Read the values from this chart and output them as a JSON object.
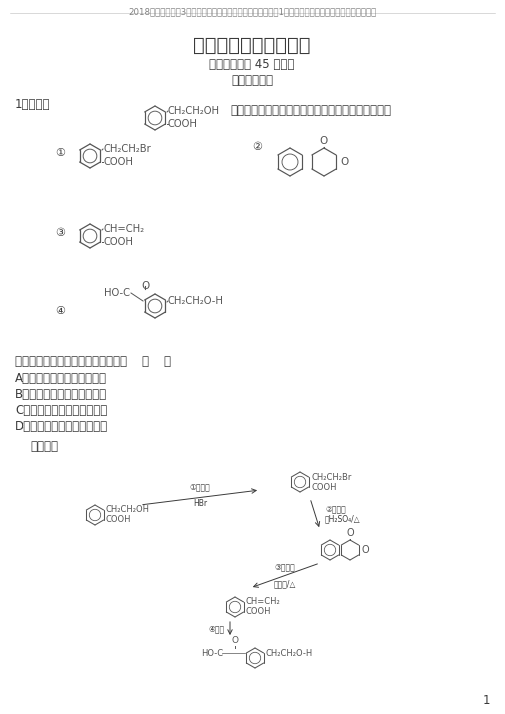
{
  "header": "2018版高中化学第3章有机合成及其应用合成高分子化合物第1节有机化合物的合成学业分层测评鲁科版",
  "title": "学业分层测评（十六）",
  "subtitle": "（建议用时： 45 分钟）",
  "section": "【学业达标】",
  "question_text": "生成这四种有机物的反响种类按次为    （    ）",
  "options": [
    "A．酯化、加成、代替、缩聚",
    "B．代替、酯化、消去、缩聚",
    "C．代替、加成、消去、加聚",
    "D．代替、酯化、加成、加聚"
  ],
  "analysis_label": "【分析】",
  "page_num": "1",
  "bg_color": "#ffffff",
  "text_color": "#3a3a3a",
  "header_color": "#808080",
  "line_color": "#888888"
}
